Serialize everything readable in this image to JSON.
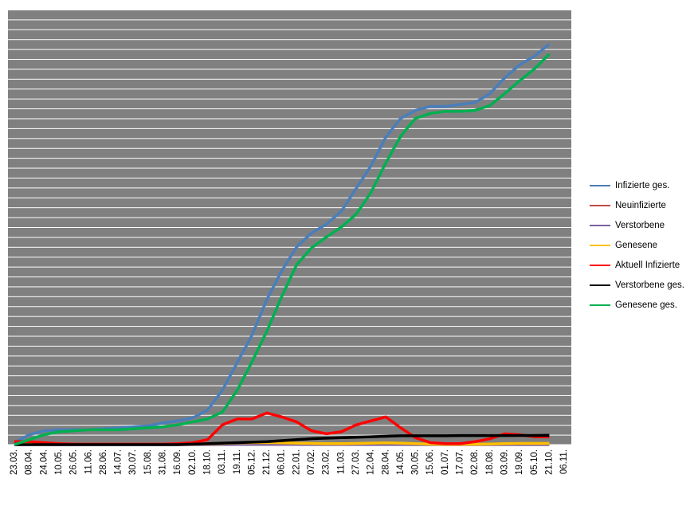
{
  "chart_data": {
    "type": "line",
    "categories": [
      "23.03.",
      "08.04.",
      "24.04.",
      "10.05.",
      "26.05.",
      "11.06.",
      "28.06.",
      "14.07.",
      "30.07.",
      "15.08.",
      "31.08.",
      "16.09.",
      "02.10.",
      "18.10.",
      "03.11.",
      "19.11.",
      "05.12.",
      "21.12.",
      "06.01.",
      "22.01.",
      "07.02.",
      "23.02.",
      "11.03.",
      "27.03.",
      "12.04.",
      "28.04.",
      "14.05.",
      "30.05.",
      "15.06.",
      "01.07.",
      "17.07.",
      "02.08.",
      "18.08.",
      "03.09.",
      "19.09.",
      "05.10.",
      "21.10.",
      "06.11."
    ],
    "ylim": [
      0,
      44
    ],
    "series": [
      {
        "name": "Infizierte ges.",
        "color": "#4a7ebb",
        "values": [
          0.2,
          1.0,
          1.4,
          1.5,
          1.5,
          1.5,
          1.6,
          1.7,
          1.8,
          1.9,
          2.2,
          2.4,
          2.7,
          3.5,
          5.5,
          8.3,
          11.1,
          14.7,
          17.6,
          20.0,
          21.4,
          22.3,
          23.6,
          25.9,
          28.2,
          31.1,
          33.0,
          33.8,
          34.2,
          34.2,
          34.4,
          34.6,
          35.5,
          37.1,
          38.4,
          39.3,
          40.5,
          null
        ]
      },
      {
        "name": "Neuinfizierte",
        "color": "#be4b48",
        "values": [
          0.05,
          0.05,
          0.02,
          0.02,
          0.02,
          0.02,
          0.02,
          0.02,
          0.02,
          0.02,
          0.03,
          0.03,
          0.05,
          0.1,
          0.15,
          0.15,
          0.15,
          0.15,
          0.12,
          0.1,
          0.08,
          0.08,
          0.1,
          0.12,
          0.12,
          0.12,
          0.08,
          0.05,
          0.03,
          0.03,
          0.03,
          0.04,
          0.06,
          0.08,
          0.08,
          0.08,
          0.1,
          null
        ]
      },
      {
        "name": "Verstorbene",
        "color": "#7d60a0",
        "values": [
          0.0,
          0.01,
          0.01,
          0.0,
          0.0,
          0.0,
          0.0,
          0.0,
          0.0,
          0.0,
          0.0,
          0.0,
          0.0,
          0.01,
          0.01,
          0.02,
          0.02,
          0.02,
          0.02,
          0.02,
          0.01,
          0.01,
          0.01,
          0.01,
          0.01,
          0.01,
          0.01,
          0.0,
          0.0,
          0.0,
          0.0,
          0.0,
          0.0,
          0.0,
          0.0,
          0.0,
          0.0,
          null
        ]
      },
      {
        "name": "Genesene",
        "color": "#ffc000",
        "values": [
          0.02,
          0.05,
          0.05,
          0.02,
          0.02,
          0.02,
          0.02,
          0.02,
          0.02,
          0.02,
          0.02,
          0.03,
          0.04,
          0.08,
          0.12,
          0.18,
          0.2,
          0.2,
          0.18,
          0.15,
          0.12,
          0.1,
          0.1,
          0.12,
          0.15,
          0.18,
          0.15,
          0.1,
          0.05,
          0.03,
          0.03,
          0.04,
          0.06,
          0.1,
          0.12,
          0.12,
          0.12,
          null
        ]
      },
      {
        "name": "Aktuell Infizierte",
        "color": "#ff0000",
        "values": [
          0.3,
          0.3,
          0.2,
          0.1,
          0.05,
          0.05,
          0.05,
          0.05,
          0.05,
          0.05,
          0.05,
          0.1,
          0.2,
          0.5,
          2.0,
          2.6,
          2.6,
          3.2,
          2.8,
          2.3,
          1.4,
          1.1,
          1.3,
          2.0,
          2.4,
          2.8,
          1.7,
          0.7,
          0.2,
          0.1,
          0.1,
          0.3,
          0.6,
          1.1,
          1.0,
          0.8,
          0.8,
          null
        ]
      },
      {
        "name": "Verstorbene ges.",
        "color": "#000000",
        "values": [
          0.0,
          0.0,
          0.0,
          0.0,
          0.0,
          0.0,
          0.0,
          0.0,
          0.0,
          0.0,
          0.0,
          0.0,
          0.05,
          0.1,
          0.15,
          0.2,
          0.25,
          0.3,
          0.4,
          0.5,
          0.6,
          0.65,
          0.7,
          0.75,
          0.8,
          0.85,
          0.9,
          0.9,
          0.9,
          0.9,
          0.92,
          0.92,
          0.92,
          0.92,
          0.93,
          0.93,
          0.95,
          null
        ]
      },
      {
        "name": "Genesene ges.",
        "color": "#00b050",
        "values": [
          0.0,
          0.5,
          1.0,
          1.3,
          1.4,
          1.5,
          1.5,
          1.5,
          1.6,
          1.7,
          1.8,
          2.0,
          2.3,
          2.6,
          3.3,
          5.5,
          8.4,
          11.5,
          15.0,
          18.2,
          19.9,
          21.0,
          22.0,
          23.3,
          25.5,
          28.5,
          31.2,
          33.0,
          33.5,
          33.7,
          33.7,
          33.8,
          34.3,
          35.5,
          36.8,
          38.0,
          39.5,
          null
        ]
      }
    ]
  }
}
